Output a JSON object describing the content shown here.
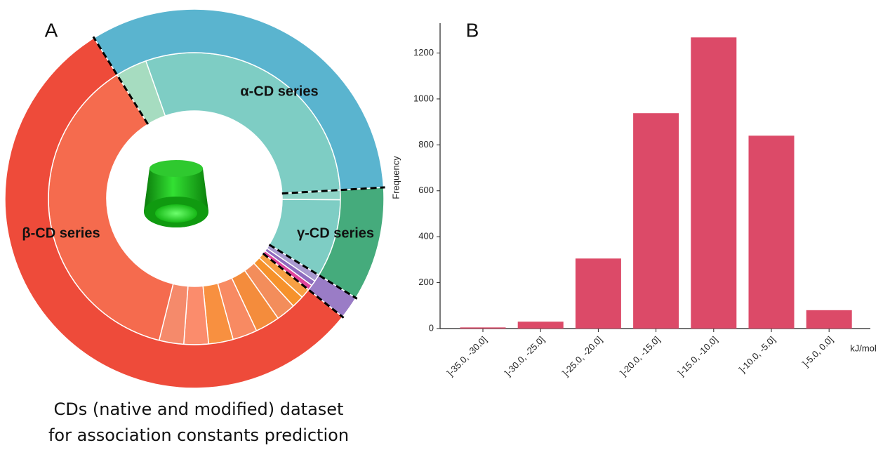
{
  "chart_data": [
    {
      "type": "sunburst",
      "panel_label": "A",
      "caption": [
        "CDs (native and modified)  dataset",
        "for association constants prediction"
      ],
      "groups": [
        {
          "name": "α-CD series",
          "color": "#5ab4cf",
          "values": [
            3.6,
            30.3
          ],
          "colors": [
            "#a6dcc0",
            "#7ecdc4"
          ]
        },
        {
          "name": "γ-CD series",
          "color": "#45ab7c",
          "values": [
            1.1,
            8.9
          ],
          "colors": [
            "#8fd4c7",
            "#7ecdc4"
          ]
        },
        {
          "name": null,
          "color": "#9a7cc6",
          "values": [
            0.8,
            0.6,
            0.6
          ],
          "colors": [
            "#a99ad0",
            "#8e6bbf",
            "#e0449b"
          ]
        },
        {
          "name": "β-CD series",
          "color": "#ee4b3a",
          "values": [
            1.1,
            1.4,
            2.2,
            2.8,
            2.8,
            2.8,
            2.8,
            2.8,
            38.3
          ],
          "colors": [
            "#f7a043",
            "#f6922c",
            "#f38d5b",
            "#f48c3c",
            "#f88a62",
            "#f89040",
            "#fb8c6c",
            "#f58a6b",
            "#f56b4e"
          ]
        }
      ]
    },
    {
      "type": "bar",
      "panel_label": "B",
      "ylabel": "Frequency",
      "xlabel": "kJ/mol",
      "color": "#dc4a68",
      "categories": [
        "]-35.0, -30.0]",
        "]-30.0, -25.0]",
        "]-25.0, -20.0]",
        "]-20.0, -15.0]",
        "]-15.0, -10.0]",
        "]-10.0, -5.0]",
        "]-5.0, 0.0]"
      ],
      "values": [
        5,
        30,
        305,
        938,
        1268,
        840,
        80
      ],
      "ylim": [
        0,
        1330
      ],
      "yticks": [
        0,
        200,
        400,
        600,
        800,
        1000,
        1200
      ]
    }
  ]
}
